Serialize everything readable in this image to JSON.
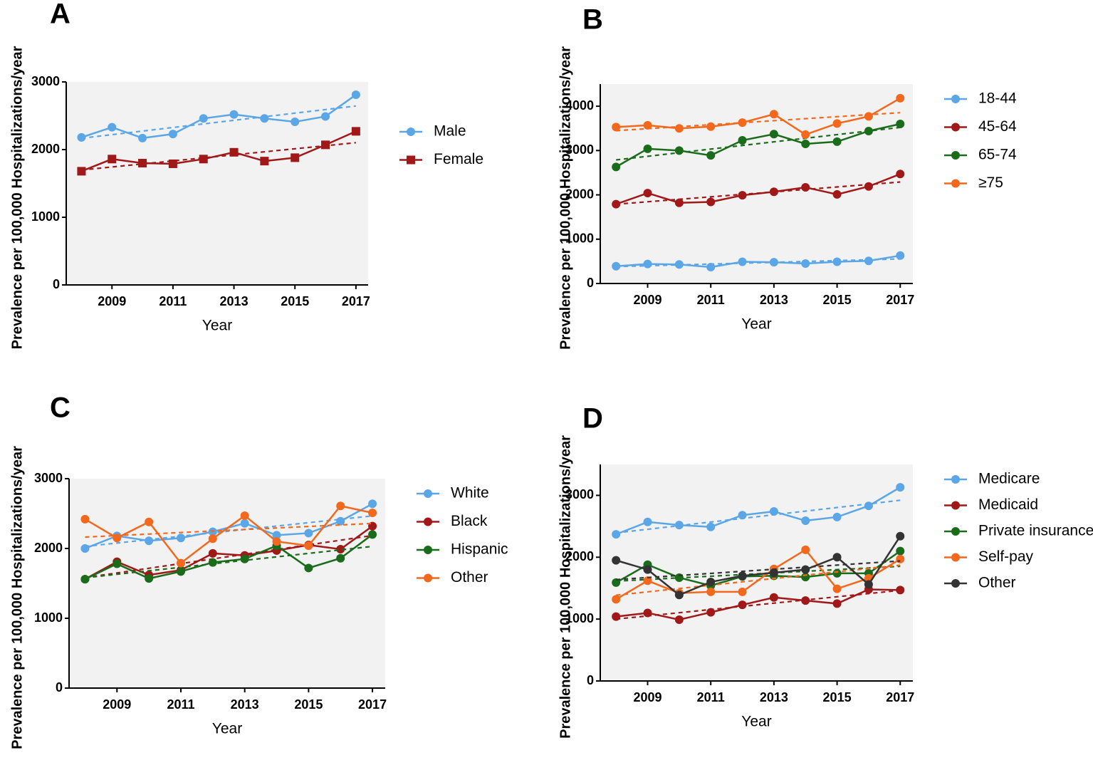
{
  "chart_data": [
    {
      "type": "line",
      "panel": "A",
      "x_label": "Year",
      "y_label": "Prevalence per 100,000 Hospitalizations/year",
      "x": [
        2008,
        2009,
        2010,
        2011,
        2012,
        2013,
        2014,
        2015,
        2016,
        2017
      ],
      "xlim": [
        2007.5,
        2017.4
      ],
      "xticks": [
        2009,
        2011,
        2013,
        2015,
        2017
      ],
      "ylim": [
        0,
        3000
      ],
      "yticks": [
        0,
        1000,
        2000,
        3000
      ],
      "trend_lines": true,
      "series": [
        {
          "name": "Male",
          "color": "#5aa6e6",
          "marker": "circle",
          "values": [
            2180,
            2330,
            2170,
            2230,
            2460,
            2520,
            2460,
            2410,
            2490,
            2810
          ]
        },
        {
          "name": "Female",
          "color": "#a01818",
          "marker": "square",
          "values": [
            1680,
            1860,
            1800,
            1790,
            1860,
            1960,
            1830,
            1880,
            2070,
            2270
          ]
        }
      ]
    },
    {
      "type": "line",
      "panel": "B",
      "x_label": "Year",
      "y_label": "Prevalence per 100,000 Hospitalizations/year",
      "x": [
        2008,
        2009,
        2010,
        2011,
        2012,
        2013,
        2014,
        2015,
        2016,
        2017
      ],
      "xlim": [
        2007.5,
        2017.4
      ],
      "xticks": [
        2009,
        2011,
        2013,
        2015,
        2017
      ],
      "ylim": [
        0,
        4500
      ],
      "yticks": [
        0,
        1000,
        2000,
        3000,
        4000
      ],
      "trend_lines": true,
      "series": [
        {
          "name": "18-44",
          "color": "#5aa6e6",
          "marker": "circle",
          "values": [
            390,
            440,
            430,
            370,
            490,
            480,
            450,
            490,
            510,
            630
          ]
        },
        {
          "name": "45-64",
          "color": "#a01818",
          "marker": "circle",
          "values": [
            1790,
            2040,
            1820,
            1840,
            1990,
            2070,
            2170,
            2010,
            2190,
            2470
          ]
        },
        {
          "name": "65-74",
          "color": "#1a6b1a",
          "marker": "circle",
          "values": [
            2630,
            3040,
            3000,
            2890,
            3230,
            3370,
            3150,
            3200,
            3440,
            3600
          ]
        },
        {
          "name": "≥75",
          "color": "#f2691e",
          "marker": "circle",
          "values": [
            3530,
            3570,
            3500,
            3540,
            3630,
            3820,
            3360,
            3610,
            3770,
            4180
          ]
        }
      ]
    },
    {
      "type": "line",
      "panel": "C",
      "x_label": "Year",
      "y_label": "Prevalence per 100,000 Hospitalizations/year",
      "x": [
        2008,
        2009,
        2010,
        2011,
        2012,
        2013,
        2014,
        2015,
        2016,
        2017
      ],
      "xlim": [
        2007.5,
        2017.4
      ],
      "xticks": [
        2009,
        2011,
        2013,
        2015,
        2017
      ],
      "ylim": [
        0,
        3000
      ],
      "yticks": [
        0,
        1000,
        2000,
        3000
      ],
      "trend_lines": true,
      "series": [
        {
          "name": "White",
          "color": "#5aa6e6",
          "marker": "circle",
          "values": [
            2000,
            2180,
            2110,
            2150,
            2240,
            2360,
            2190,
            2220,
            2390,
            2640
          ]
        },
        {
          "name": "Black",
          "color": "#a01818",
          "marker": "circle",
          "values": [
            1560,
            1810,
            1620,
            1690,
            1930,
            1900,
            1970,
            2050,
            1990,
            2320
          ]
        },
        {
          "name": "Hispanic",
          "color": "#1a6b1a",
          "marker": "circle",
          "values": [
            1560,
            1780,
            1570,
            1670,
            1800,
            1850,
            2040,
            1720,
            1860,
            2200
          ]
        },
        {
          "name": "Other",
          "color": "#f2691e",
          "marker": "circle",
          "values": [
            2420,
            2150,
            2380,
            1790,
            2140,
            2470,
            2100,
            2040,
            2610,
            2510
          ]
        }
      ]
    },
    {
      "type": "line",
      "panel": "D",
      "x_label": "Year",
      "y_label": "Prevalence per 100,000 Hospitalizations/year",
      "x": [
        2008,
        2009,
        2010,
        2011,
        2012,
        2013,
        2014,
        2015,
        2016,
        2017
      ],
      "xlim": [
        2007.5,
        2017.4
      ],
      "xticks": [
        2009,
        2011,
        2013,
        2015,
        2017
      ],
      "ylim": [
        0,
        3500
      ],
      "yticks": [
        0,
        1000,
        2000,
        3000
      ],
      "trend_lines": true,
      "series": [
        {
          "name": "Medicare",
          "color": "#5aa6e6",
          "marker": "circle",
          "values": [
            2370,
            2570,
            2520,
            2490,
            2680,
            2740,
            2590,
            2650,
            2830,
            3130
          ]
        },
        {
          "name": "Medicaid",
          "color": "#a01818",
          "marker": "circle",
          "values": [
            1040,
            1100,
            990,
            1110,
            1230,
            1350,
            1300,
            1250,
            1480,
            1470
          ]
        },
        {
          "name": "Private insurance",
          "color": "#1a6b1a",
          "marker": "circle",
          "values": [
            1590,
            1880,
            1670,
            1540,
            1690,
            1700,
            1680,
            1740,
            1740,
            2100
          ]
        },
        {
          "name": "Self-pay",
          "color": "#f2691e",
          "marker": "circle",
          "values": [
            1320,
            1620,
            1420,
            1440,
            1440,
            1810,
            2120,
            1490,
            1660,
            1970
          ]
        },
        {
          "name": "Other",
          "color": "#333333",
          "marker": "circle",
          "values": [
            1950,
            1800,
            1390,
            1600,
            1700,
            1750,
            1800,
            2000,
            1560,
            2340
          ]
        }
      ]
    }
  ]
}
